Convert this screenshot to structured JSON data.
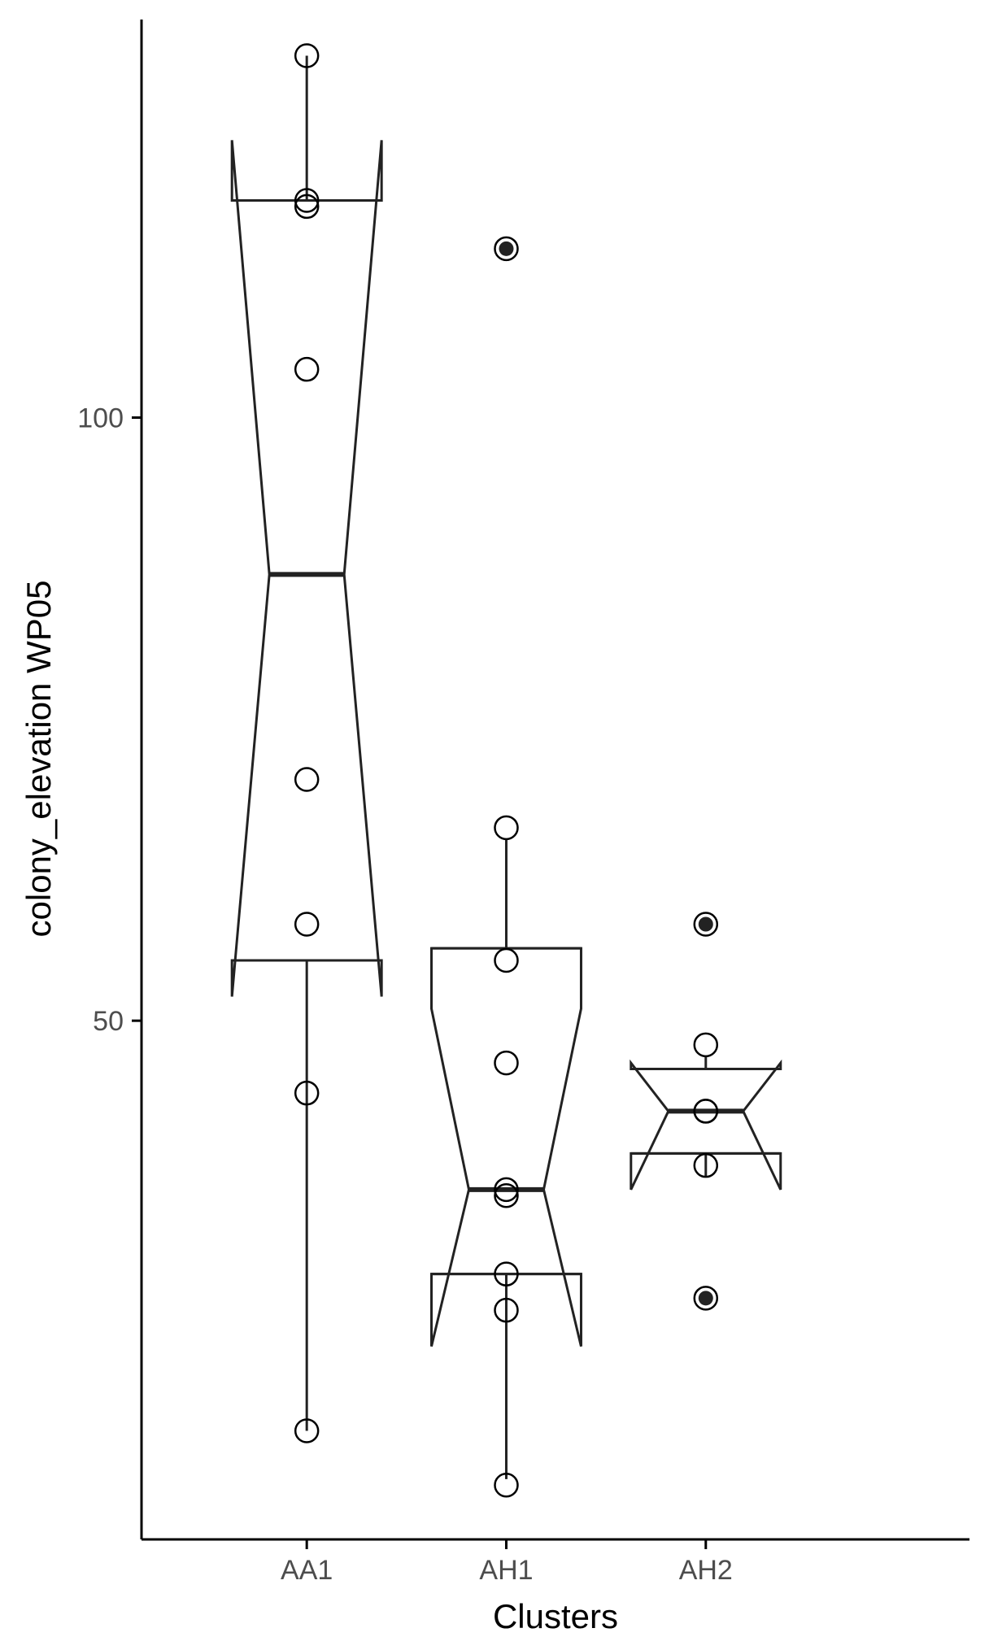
{
  "chart_data": {
    "type": "boxplot",
    "notched": true,
    "xlabel": "Clusters",
    "ylabel": "colony_elevation WP05",
    "ylim": [
      7,
      133
    ],
    "y_ticks": [
      50,
      100
    ],
    "y_tick_labels": [
      "50",
      "100"
    ],
    "categories": [
      "AA1",
      "AH1",
      "AH2"
    ],
    "grid": false,
    "legend": "none",
    "colors": {
      "stroke": "#222222",
      "axis": "#000000",
      "tick_label": "#4d4d4d",
      "outlier_fill": "#222222"
    },
    "boxes": [
      {
        "category": "AA1",
        "whisker_low": 16,
        "q1": 55,
        "median": 87,
        "q3": 118,
        "whisker_high": 130,
        "notch_low": 52,
        "notch_high": 123
      },
      {
        "category": "AH1",
        "whisker_low": 12,
        "q1": 29,
        "median": 36,
        "q3": 56,
        "whisker_high": 65,
        "notch_low": 23,
        "notch_high": 51
      },
      {
        "category": "AH2",
        "whisker_low": 37,
        "q1": 39,
        "median": 42.5,
        "q3": 46,
        "whisker_high": 47,
        "notch_low": 36,
        "notch_high": 46.5
      }
    ],
    "points": [
      {
        "category": "AA1",
        "y": 130,
        "outlier": false
      },
      {
        "category": "AA1",
        "y": 118,
        "outlier": false
      },
      {
        "category": "AA1",
        "y": 117.5,
        "outlier": false
      },
      {
        "category": "AA1",
        "y": 104,
        "outlier": false
      },
      {
        "category": "AA1",
        "y": 70,
        "outlier": false
      },
      {
        "category": "AA1",
        "y": 58,
        "outlier": false
      },
      {
        "category": "AA1",
        "y": 44,
        "outlier": false
      },
      {
        "category": "AA1",
        "y": 16,
        "outlier": false
      },
      {
        "category": "AH1",
        "y": 114,
        "outlier": true
      },
      {
        "category": "AH1",
        "y": 66,
        "outlier": false
      },
      {
        "category": "AH1",
        "y": 55,
        "outlier": false
      },
      {
        "category": "AH1",
        "y": 46.5,
        "outlier": false
      },
      {
        "category": "AH1",
        "y": 36,
        "outlier": false
      },
      {
        "category": "AH1",
        "y": 35.5,
        "outlier": false
      },
      {
        "category": "AH1",
        "y": 29,
        "outlier": false
      },
      {
        "category": "AH1",
        "y": 26,
        "outlier": false
      },
      {
        "category": "AH1",
        "y": 11.5,
        "outlier": false
      },
      {
        "category": "AH2",
        "y": 58,
        "outlier": true
      },
      {
        "category": "AH2",
        "y": 48,
        "outlier": false
      },
      {
        "category": "AH2",
        "y": 42.5,
        "outlier": false
      },
      {
        "category": "AH2",
        "y": 42.5,
        "outlier": false
      },
      {
        "category": "AH2",
        "y": 38,
        "outlier": false
      },
      {
        "category": "AH2",
        "y": 27,
        "outlier": true
      }
    ]
  }
}
